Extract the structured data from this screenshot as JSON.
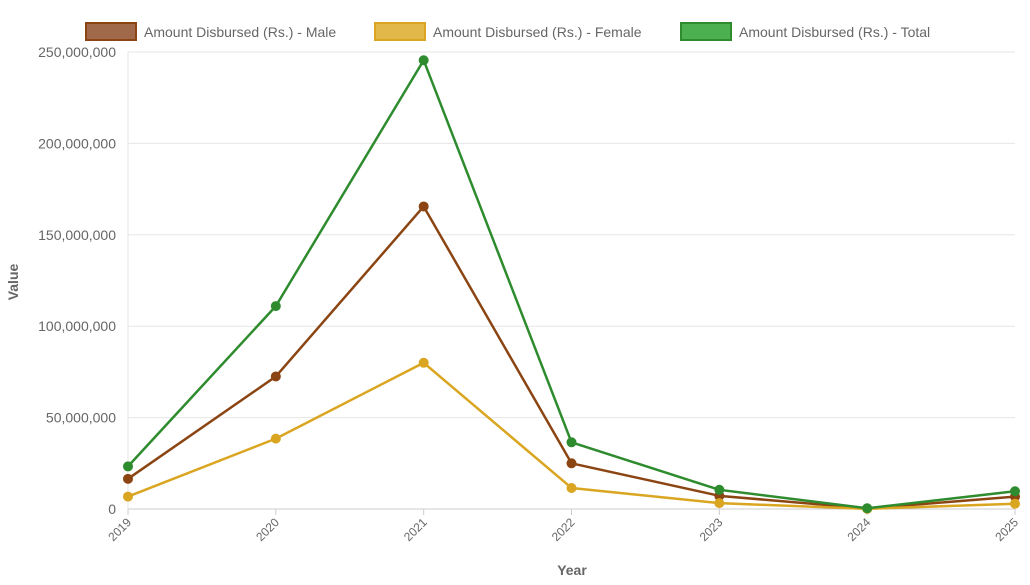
{
  "chart_data": {
    "type": "line",
    "title": "",
    "xlabel": "Year",
    "ylabel": "Value",
    "categories": [
      "2019",
      "2020",
      "2021",
      "2022",
      "2023",
      "2024",
      "2025"
    ],
    "ylim": [
      0,
      250000000
    ],
    "yticks": [
      0,
      50000000,
      100000000,
      150000000,
      200000000,
      250000000
    ],
    "ytick_labels": [
      "0",
      "50,000,000",
      "100,000,000",
      "150,000,000",
      "200,000,000",
      "250,000,000"
    ],
    "grid": true,
    "legend_position": "top",
    "series": [
      {
        "name": "Amount Disbursed (Rs.) - Male",
        "color": "#8B4513",
        "fill": "#A0694A",
        "values": [
          16500000,
          72500000,
          165500000,
          25000000,
          7200000,
          300000,
          6800000
        ]
      },
      {
        "name": "Amount Disbursed (Rs.) - Female",
        "color": "#DAA520",
        "fill": "#E3B84A",
        "values": [
          6800000,
          38500000,
          80000000,
          11500000,
          3200000,
          100000,
          2900000
        ]
      },
      {
        "name": "Amount Disbursed (Rs.) - Total",
        "color": "#2E8B2E",
        "fill": "#4CAF50",
        "values": [
          23300000,
          111000000,
          245500000,
          36500000,
          10500000,
          400000,
          9700000
        ]
      }
    ]
  }
}
